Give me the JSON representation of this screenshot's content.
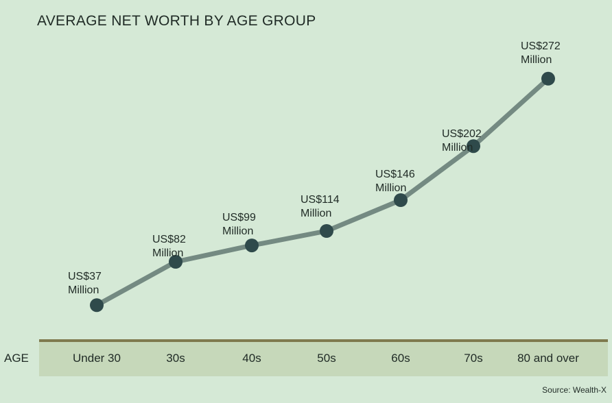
{
  "chart_data": {
    "type": "line",
    "title": "AVERAGE NET WORTH BY AGE GROUP",
    "xlabel": "AGE",
    "ylabel": "",
    "categories": [
      "Under 30",
      "30s",
      "40s",
      "50s",
      "60s",
      "70s",
      "80 and over"
    ],
    "values": [
      37,
      82,
      99,
      114,
      146,
      202,
      272
    ],
    "unit": "US$ Million",
    "data_labels": [
      [
        "US$37",
        "Million"
      ],
      [
        "US$82",
        "Million"
      ],
      [
        "US$99",
        "Million"
      ],
      [
        "US$114",
        "Million"
      ],
      [
        "US$146",
        "Million"
      ],
      [
        "US$202",
        "Million"
      ],
      [
        "US$272",
        "Million"
      ]
    ],
    "ylim": [
      0,
      300
    ],
    "grid": false,
    "legend": "none",
    "source": "Source: Wealth-X"
  },
  "colors": {
    "background": "#d5e9d6",
    "line": "#748a82",
    "marker": "#2f4a4b",
    "axis_band": "#c6d8ba",
    "axis_border": "#7f7a4e"
  }
}
